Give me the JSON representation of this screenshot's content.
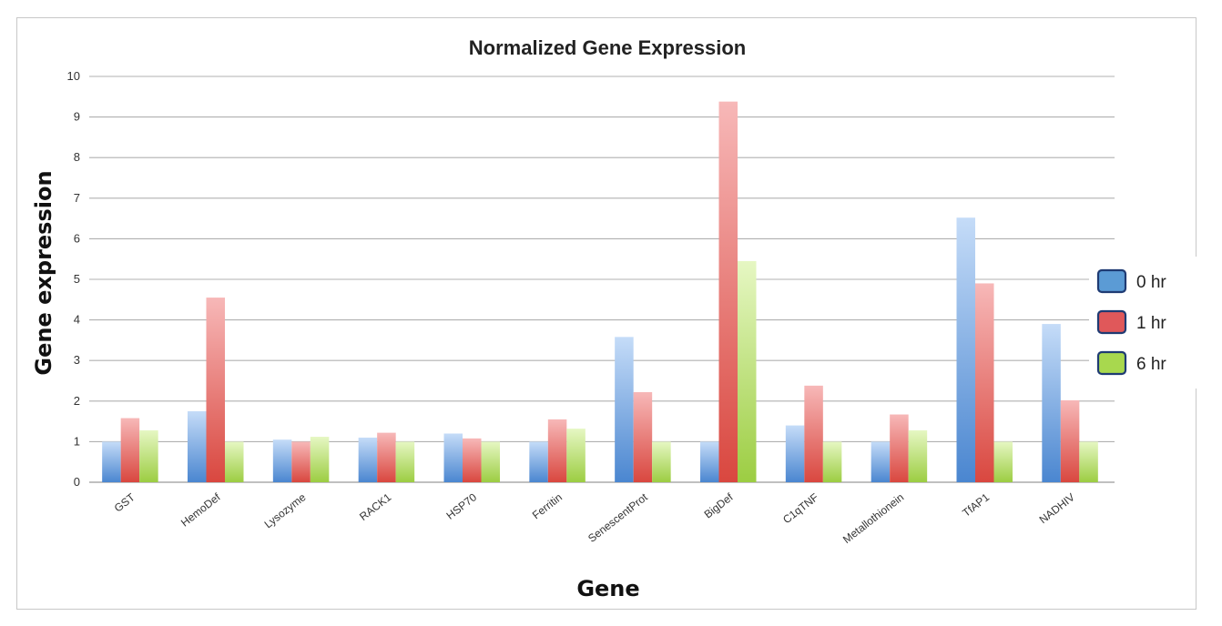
{
  "chart_data": {
    "type": "bar",
    "title": "Normalized Gene Expression",
    "xlabel": "Gene",
    "ylabel": "Gene expression",
    "ylim": [
      0,
      10
    ],
    "yticks": [
      "0",
      "1",
      "2",
      "3",
      "4",
      "5",
      "6",
      "7",
      "8",
      "9",
      "10"
    ],
    "grid": true,
    "legend_position": "right",
    "categories": [
      "GST",
      "HemoDef",
      "Lysozyme",
      "RACK1",
      "HSP70",
      "Ferritin",
      "SenescentProt",
      "BigDef",
      "C1qTNF",
      "Metallothionein",
      "TfAP1",
      "NADHIV"
    ],
    "series": [
      {
        "name": "0 hr",
        "color": "#5b9bd5",
        "values": [
          1.0,
          1.75,
          1.05,
          1.1,
          1.2,
          1.0,
          3.58,
          1.0,
          1.4,
          1.0,
          6.52,
          3.9
        ]
      },
      {
        "name": "1 hr",
        "color": "#e0585a",
        "values": [
          1.58,
          4.55,
          1.0,
          1.22,
          1.08,
          1.55,
          2.22,
          9.38,
          2.38,
          1.67,
          4.9,
          2.02
        ]
      },
      {
        "name": "6 hr",
        "color": "#a8d84e",
        "values": [
          1.28,
          1.0,
          1.12,
          1.0,
          1.0,
          1.32,
          1.0,
          5.45,
          1.0,
          1.28,
          1.0,
          1.0
        ]
      }
    ]
  }
}
